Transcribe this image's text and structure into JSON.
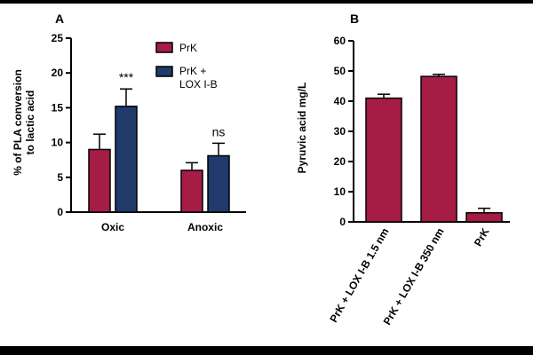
{
  "colors": {
    "prk": "#A51C45",
    "prk_lox": "#1F3A6B",
    "outline": "#000000",
    "background": "#FFFFFF"
  },
  "chart_data": [
    {
      "panel": "A",
      "type": "bar",
      "categories": [
        "Oxic",
        "Anoxic"
      ],
      "series": [
        {
          "name": "PrK",
          "values": [
            9.0,
            6.0
          ],
          "errors": [
            2.2,
            1.1
          ]
        },
        {
          "name": "PrK + LOX I-B",
          "values": [
            15.2,
            8.1
          ],
          "errors": [
            2.5,
            1.8
          ]
        }
      ],
      "significance": [
        "***",
        "ns"
      ],
      "ylabel": [
        "% of PLA conversion",
        "to lactic acid"
      ],
      "ylim": [
        0,
        25
      ],
      "yticks": [
        "0",
        "5",
        "10",
        "15",
        "20",
        "25"
      ],
      "legend": [
        "PrK",
        "PrK +",
        "LOX I-B"
      ],
      "legend_position": "top-right"
    },
    {
      "panel": "B",
      "type": "bar",
      "categories": [
        "PrK + LOX I-B 1.5 nm",
        "PrK + LOX I-B 350 nm",
        "PrK"
      ],
      "values": [
        41.0,
        48.2,
        3.0
      ],
      "errors": [
        1.3,
        0.7,
        1.5
      ],
      "ylabel": "Pyruvic acid mg/L",
      "ylim": [
        0,
        60
      ],
      "yticks": [
        "0",
        "10",
        "20",
        "30",
        "40",
        "50",
        "60"
      ]
    }
  ]
}
